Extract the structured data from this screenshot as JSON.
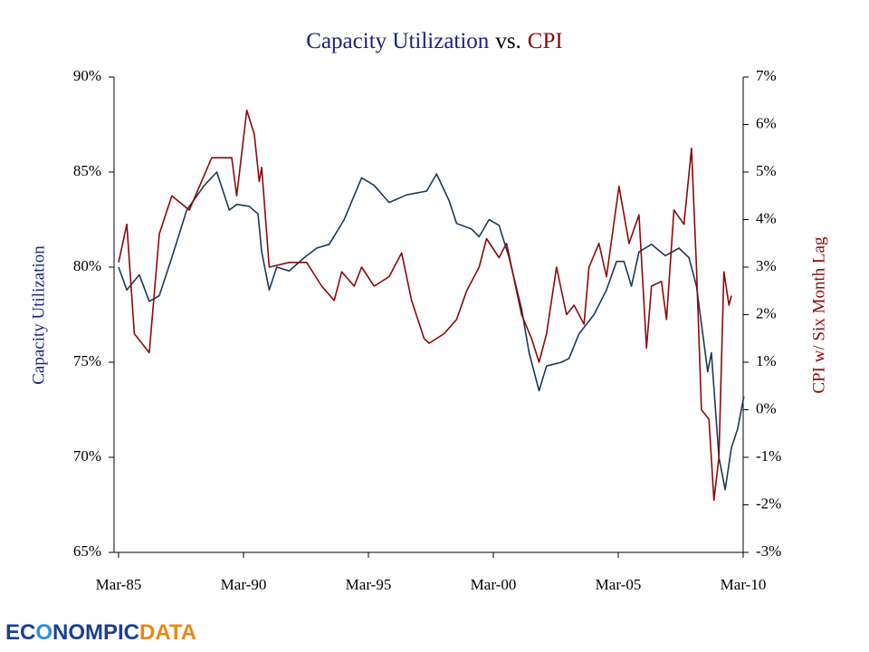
{
  "chart_data": {
    "type": "line",
    "title": [
      "Capacity Utilization",
      "vs.",
      "CPI"
    ],
    "ylabel": "Capacity Utilization",
    "y2label": "CPI w/ Six Month Lag",
    "xlim": [
      1985.17,
      2010.17
    ],
    "xticks": [
      {
        "value": 1985.17,
        "label": "Mar-85"
      },
      {
        "value": 1990.17,
        "label": "Mar-90"
      },
      {
        "value": 1995.17,
        "label": "Mar-95"
      },
      {
        "value": 2000.17,
        "label": "Mar-00"
      },
      {
        "value": 2005.17,
        "label": "Mar-05"
      },
      {
        "value": 2010.17,
        "label": "Mar-10"
      }
    ],
    "ylim": [
      65,
      90
    ],
    "yticks": [
      {
        "value": 65,
        "label": "65%"
      },
      {
        "value": 70,
        "label": "70%"
      },
      {
        "value": 75,
        "label": "75%"
      },
      {
        "value": 80,
        "label": "80%"
      },
      {
        "value": 85,
        "label": "85%"
      },
      {
        "value": 90,
        "label": "90%"
      }
    ],
    "y2lim": [
      -3,
      7
    ],
    "y2ticks": [
      {
        "value": -3,
        "label": "-3%"
      },
      {
        "value": -2,
        "label": "-2%"
      },
      {
        "value": -1,
        "label": "-1%"
      },
      {
        "value": 0,
        "label": "0%"
      },
      {
        "value": 1,
        "label": "1%"
      },
      {
        "value": 2,
        "label": "2%"
      },
      {
        "value": 3,
        "label": "3%"
      },
      {
        "value": 4,
        "label": "4%"
      },
      {
        "value": 5,
        "label": "5%"
      },
      {
        "value": 6,
        "label": "6%"
      },
      {
        "value": 7,
        "label": "7%"
      }
    ],
    "series": [
      {
        "name": "Capacity Utilization",
        "color": "#1b3a57",
        "x": [
          1985.17,
          1985.5,
          1986.0,
          1986.4,
          1986.8,
          1987.3,
          1987.9,
          1988.6,
          1989.1,
          1989.6,
          1989.9,
          1990.4,
          1990.75,
          1990.9,
          1991.2,
          1991.5,
          1992.0,
          1992.6,
          1993.1,
          1993.6,
          1994.2,
          1994.9,
          1995.4,
          1996.0,
          1996.7,
          1997.5,
          1997.9,
          1998.4,
          1998.7,
          1999.3,
          1999.6,
          2000.0,
          2000.4,
          2000.8,
          2001.3,
          2001.6,
          2002.0,
          2002.3,
          2002.9,
          2003.2,
          2003.6,
          2004.2,
          2004.7,
          2005.1,
          2005.4,
          2005.7,
          2006.0,
          2006.5,
          2007.05,
          2007.6,
          2008.0,
          2008.3,
          2008.6,
          2008.75,
          2008.9,
          2009.2,
          2009.45,
          2009.7,
          2009.95,
          2010.2
        ],
        "values": [
          80.0,
          78.8,
          79.6,
          78.2,
          78.5,
          80.5,
          83.0,
          84.3,
          85.0,
          83.0,
          83.3,
          83.2,
          82.8,
          80.8,
          78.8,
          80.0,
          79.8,
          80.5,
          81.0,
          81.2,
          82.5,
          84.7,
          84.3,
          83.4,
          83.8,
          84.0,
          84.9,
          83.5,
          82.3,
          82.0,
          81.6,
          82.5,
          82.2,
          80.5,
          77.8,
          75.5,
          73.5,
          74.8,
          75.0,
          75.2,
          76.5,
          77.5,
          78.8,
          80.3,
          80.3,
          79.0,
          80.8,
          81.2,
          80.6,
          81.0,
          80.5,
          79.0,
          76.0,
          74.5,
          75.5,
          70.0,
          68.3,
          70.5,
          71.5,
          73.2
        ]
      },
      {
        "name": "CPI w/ Six Month Lag",
        "color": "#8b0a0a",
        "axis": "y2",
        "x": [
          1985.17,
          1985.5,
          1985.8,
          1986.4,
          1986.8,
          1987.3,
          1988.0,
          1988.9,
          1989.7,
          1989.9,
          1990.3,
          1990.6,
          1990.8,
          1990.9,
          1991.2,
          1992.0,
          1992.7,
          1993.3,
          1993.8,
          1994.1,
          1994.6,
          1994.9,
          1995.4,
          1996.0,
          1996.5,
          1996.9,
          1997.4,
          1997.6,
          1998.2,
          1998.7,
          1999.1,
          1999.6,
          1999.9,
          2000.4,
          2000.7,
          2001.3,
          2001.7,
          2002.0,
          2002.3,
          2002.7,
          2003.1,
          2003.4,
          2003.8,
          2004.0,
          2004.4,
          2004.7,
          2005.2,
          2005.6,
          2006.0,
          2006.3,
          2006.5,
          2006.9,
          2007.1,
          2007.4,
          2007.8,
          2008.1,
          2008.3,
          2008.5,
          2008.8,
          2009.0,
          2009.2,
          2009.4,
          2009.6,
          2009.7
        ],
        "values": [
          3.1,
          3.9,
          1.6,
          1.2,
          3.7,
          4.5,
          4.2,
          5.3,
          5.3,
          4.5,
          6.3,
          5.8,
          4.8,
          5.1,
          3.0,
          3.1,
          3.1,
          2.6,
          2.3,
          2.9,
          2.6,
          3.0,
          2.6,
          2.8,
          3.3,
          2.3,
          1.5,
          1.4,
          1.6,
          1.9,
          2.5,
          3.0,
          3.6,
          3.2,
          3.5,
          2.0,
          1.5,
          1.0,
          1.6,
          3.0,
          2.0,
          2.2,
          1.8,
          3.0,
          3.5,
          2.8,
          4.7,
          3.5,
          4.1,
          1.3,
          2.6,
          2.7,
          1.9,
          4.2,
          3.9,
          5.5,
          3.0,
          0.0,
          -0.2,
          -1.9,
          -1.0,
          2.9,
          2.2,
          2.4
        ]
      }
    ],
    "logo": [
      "EC",
      "O",
      "NOMPIC",
      "DATA"
    ]
  }
}
